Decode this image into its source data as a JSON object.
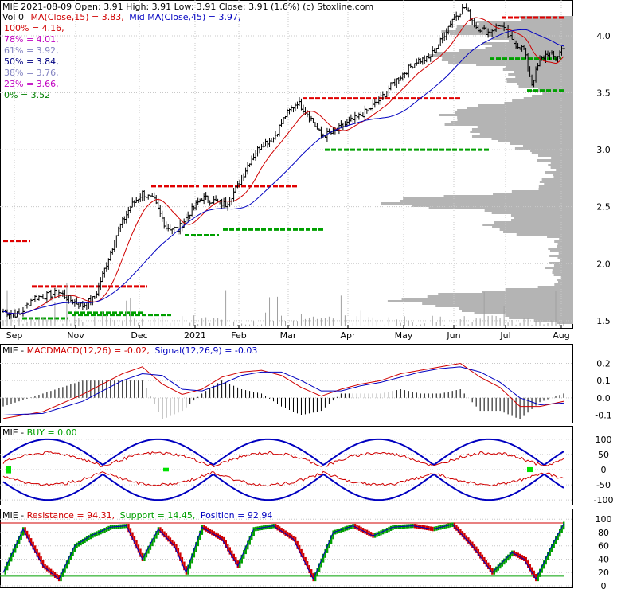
{
  "header": {
    "line1": "MIE  2021-08-09 Open: 3.91  High: 3.91  Low: 3.91  Close: 3.91 (1.6%)  (c) Stoxline.com",
    "ma_label": "MA(Close,15) = 3.83,",
    "mid_ma_label": "Mid MA(Close,45) = 3.97,",
    "vol_label": "Vol 0"
  },
  "fib_levels": [
    {
      "label": "100% = 4.16,",
      "color": "#d00000"
    },
    {
      "label": "78% = 4.01,",
      "color": "#c000c0"
    },
    {
      "label": "61% = 3.92,",
      "color": "#8080c0"
    },
    {
      "label": "50% = 3.84,",
      "color": "#000080"
    },
    {
      "label": "38% = 3.76,",
      "color": "#8080c0"
    },
    {
      "label": "23% = 3.66,",
      "color": "#c000c0"
    },
    {
      "label": "0% = 3.52",
      "color": "#008000"
    }
  ],
  "months": [
    "Sep",
    "Nov",
    "Dec",
    "2021",
    "Feb",
    "Mar",
    "Apr",
    "May",
    "Jun",
    "Jul",
    "Aug"
  ],
  "colors": {
    "up": "#008000",
    "down": "#d00000",
    "ma15": "#d00000",
    "ma45": "#0000c0",
    "volume_profile": "#b4b4b4",
    "resistance": "#e00000",
    "support": "#00a000"
  },
  "macd_panel": {
    "title_prefix": "MIE - ",
    "title_macd": "MACDMACD(12,26) = -0.02,",
    "title_signal": "Signal(12,26,9) = -0.03",
    "ticks": [
      "0.2",
      "0.1",
      "0.0",
      "-0.1"
    ]
  },
  "buy_panel": {
    "title_prefix": "MIE - ",
    "title_buy": "BUY = 0.00",
    "ticks": [
      "100",
      "50",
      "0",
      "-50",
      "-100"
    ]
  },
  "stoch_panel": {
    "title_prefix": "MIE - ",
    "title_res": "Resistance = 94.31,",
    "title_sup": "Support = 14.45,",
    "title_pos": "Position = 92.94",
    "ticks": [
      "100",
      "80",
      "60",
      "40",
      "20",
      "0"
    ]
  },
  "chart_data": {
    "type": "line",
    "title": "MIE",
    "ylim": [
      1.45,
      4.3
    ],
    "yticks": [
      1.5,
      2.0,
      2.5,
      3.0,
      3.5,
      4.0
    ],
    "ytick_labels": [
      "1.5",
      "2.0",
      "2.5",
      "3.0",
      "3.5",
      "4.0"
    ],
    "date_range": [
      "2020-08-27",
      "2021-08-09"
    ],
    "price_keypoints": [
      [
        0,
        1.58
      ],
      [
        8,
        1.55
      ],
      [
        15,
        1.7
      ],
      [
        22,
        1.72
      ],
      [
        28,
        1.75
      ],
      [
        34,
        1.68
      ],
      [
        40,
        1.63
      ],
      [
        46,
        1.7
      ],
      [
        52,
        2.0
      ],
      [
        58,
        2.3
      ],
      [
        64,
        2.5
      ],
      [
        70,
        2.62
      ],
      [
        76,
        2.55
      ],
      [
        82,
        2.32
      ],
      [
        88,
        2.3
      ],
      [
        94,
        2.45
      ],
      [
        100,
        2.58
      ],
      [
        106,
        2.55
      ],
      [
        112,
        2.52
      ],
      [
        118,
        2.68
      ],
      [
        124,
        2.9
      ],
      [
        130,
        3.05
      ],
      [
        136,
        3.1
      ],
      [
        142,
        3.3
      ],
      [
        148,
        3.42
      ],
      [
        154,
        3.3
      ],
      [
        160,
        3.12
      ],
      [
        166,
        3.15
      ],
      [
        172,
        3.22
      ],
      [
        178,
        3.28
      ],
      [
        184,
        3.35
      ],
      [
        190,
        3.45
      ],
      [
        196,
        3.58
      ],
      [
        202,
        3.68
      ],
      [
        208,
        3.78
      ],
      [
        214,
        3.8
      ],
      [
        220,
        3.95
      ],
      [
        226,
        4.15
      ],
      [
        232,
        4.25
      ],
      [
        238,
        4.08
      ],
      [
        244,
        4.03
      ],
      [
        250,
        4.1
      ],
      [
        256,
        3.95
      ],
      [
        262,
        3.88
      ],
      [
        266,
        3.58
      ],
      [
        270,
        3.78
      ],
      [
        274,
        3.85
      ],
      [
        278,
        3.8
      ],
      [
        282,
        3.91
      ]
    ],
    "resistance_levels": [
      2.2,
      1.8,
      2.68,
      2.68,
      3.45,
      4.33,
      4.16
    ],
    "support_levels": [
      1.52,
      1.55,
      1.57,
      2.25,
      2.3,
      3.0,
      3.8,
      3.52
    ],
    "macd": [
      [
        0,
        -0.12
      ],
      [
        20,
        -0.08
      ],
      [
        40,
        0.02
      ],
      [
        60,
        0.14
      ],
      [
        70,
        0.18
      ],
      [
        80,
        0.08
      ],
      [
        90,
        0.02
      ],
      [
        100,
        0.05
      ],
      [
        110,
        0.12
      ],
      [
        120,
        0.15
      ],
      [
        130,
        0.16
      ],
      [
        140,
        0.13
      ],
      [
        150,
        0.06
      ],
      [
        160,
        0.01
      ],
      [
        170,
        0.05
      ],
      [
        180,
        0.08
      ],
      [
        190,
        0.1
      ],
      [
        200,
        0.14
      ],
      [
        210,
        0.16
      ],
      [
        220,
        0.18
      ],
      [
        230,
        0.2
      ],
      [
        240,
        0.12
      ],
      [
        250,
        0.06
      ],
      [
        260,
        -0.05
      ],
      [
        270,
        -0.05
      ],
      [
        282,
        -0.02
      ]
    ],
    "signal": [
      [
        0,
        -0.1
      ],
      [
        20,
        -0.09
      ],
      [
        40,
        -0.02
      ],
      [
        60,
        0.1
      ],
      [
        70,
        0.14
      ],
      [
        80,
        0.13
      ],
      [
        90,
        0.05
      ],
      [
        100,
        0.04
      ],
      [
        110,
        0.08
      ],
      [
        120,
        0.13
      ],
      [
        130,
        0.15
      ],
      [
        140,
        0.15
      ],
      [
        150,
        0.1
      ],
      [
        160,
        0.04
      ],
      [
        170,
        0.04
      ],
      [
        180,
        0.07
      ],
      [
        190,
        0.09
      ],
      [
        200,
        0.12
      ],
      [
        210,
        0.15
      ],
      [
        220,
        0.17
      ],
      [
        230,
        0.18
      ],
      [
        240,
        0.15
      ],
      [
        250,
        0.09
      ],
      [
        260,
        0.0
      ],
      [
        270,
        -0.04
      ],
      [
        282,
        -0.03
      ]
    ],
    "stochastic_position": [
      [
        0,
        20
      ],
      [
        10,
        85
      ],
      [
        20,
        30
      ],
      [
        28,
        10
      ],
      [
        36,
        60
      ],
      [
        44,
        75
      ],
      [
        54,
        88
      ],
      [
        62,
        90
      ],
      [
        70,
        40
      ],
      [
        78,
        85
      ],
      [
        86,
        60
      ],
      [
        92,
        20
      ],
      [
        100,
        88
      ],
      [
        110,
        70
      ],
      [
        118,
        30
      ],
      [
        126,
        85
      ],
      [
        136,
        90
      ],
      [
        146,
        70
      ],
      [
        156,
        10
      ],
      [
        166,
        80
      ],
      [
        176,
        90
      ],
      [
        186,
        75
      ],
      [
        196,
        88
      ],
      [
        206,
        90
      ],
      [
        216,
        85
      ],
      [
        226,
        92
      ],
      [
        236,
        60
      ],
      [
        246,
        20
      ],
      [
        256,
        50
      ],
      [
        262,
        40
      ],
      [
        268,
        10
      ],
      [
        276,
        60
      ],
      [
        282,
        93
      ]
    ],
    "stochastic_resistance": 94.31,
    "stochastic_support": 14.45
  }
}
